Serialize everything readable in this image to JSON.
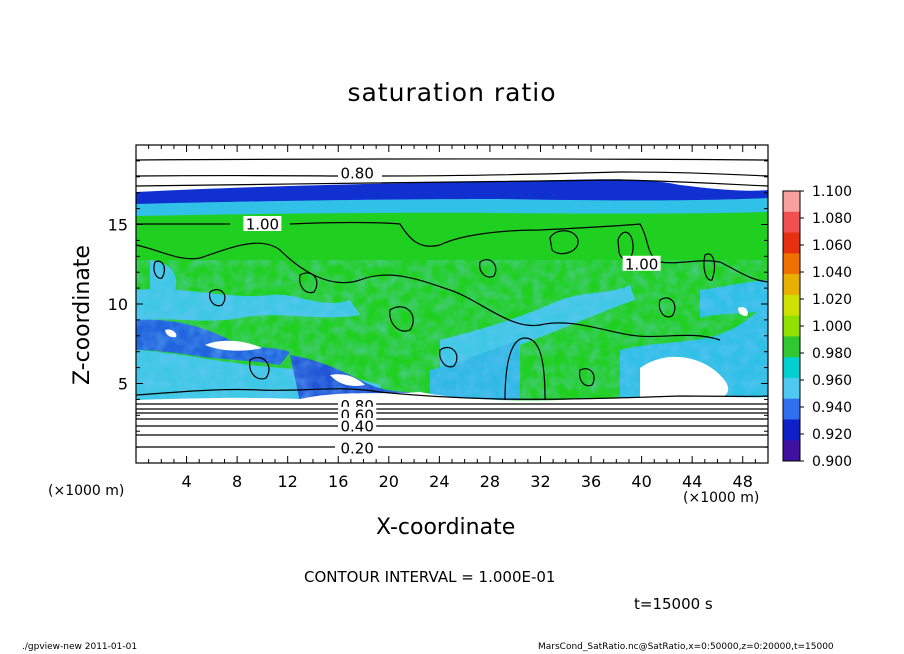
{
  "chart_data": {
    "type": "heatmap",
    "title": "saturation ratio",
    "xlabel": "X-coordinate",
    "ylabel": "Z-coordinate",
    "x_unit": "(×1000 m)",
    "y_unit": "(×1000 m)",
    "x_ticks": [
      4,
      8,
      12,
      16,
      20,
      24,
      28,
      32,
      36,
      40,
      44,
      48
    ],
    "y_ticks": [
      5,
      10,
      15
    ],
    "xlim": [
      0,
      50
    ],
    "ylim": [
      0,
      20
    ],
    "contour_labels": [
      {
        "text": "0.80",
        "x": 17.5,
        "z": 18.2
      },
      {
        "text": "1.00",
        "x": 10,
        "z": 15.0
      },
      {
        "text": "1.00",
        "x": 40,
        "z": 12.5
      },
      {
        "text": "0.80",
        "x": 17.5,
        "z": 3.6
      },
      {
        "text": "0.60",
        "x": 17.5,
        "z": 3.0
      },
      {
        "text": "0.40",
        "x": 17.5,
        "z": 2.3
      },
      {
        "text": "0.20",
        "x": 17.5,
        "z": 0.9
      }
    ],
    "contour_interval": "CONTOUR INTERVAL = 1.000E-01",
    "colorbar": {
      "levels": [
        "1.100",
        "1.080",
        "1.060",
        "1.040",
        "1.020",
        "1.000",
        "0.980",
        "0.960",
        "0.940",
        "0.920",
        "0.900"
      ],
      "colors": [
        "#f7a0a0",
        "#f05050",
        "#e83010",
        "#f07000",
        "#e8b000",
        "#d0e000",
        "#90e000",
        "#30c830",
        "#00d0d0",
        "#50c8f0",
        "#3070f0",
        "#1020c8",
        "#4010a0"
      ]
    },
    "time": "t=15000 s"
  },
  "footer": {
    "left": "./gpview-new   2011-01-01",
    "right": "MarsCond_SatRatio.nc@SatRatio,x=0:50000,z=0:20000,t=15000"
  }
}
